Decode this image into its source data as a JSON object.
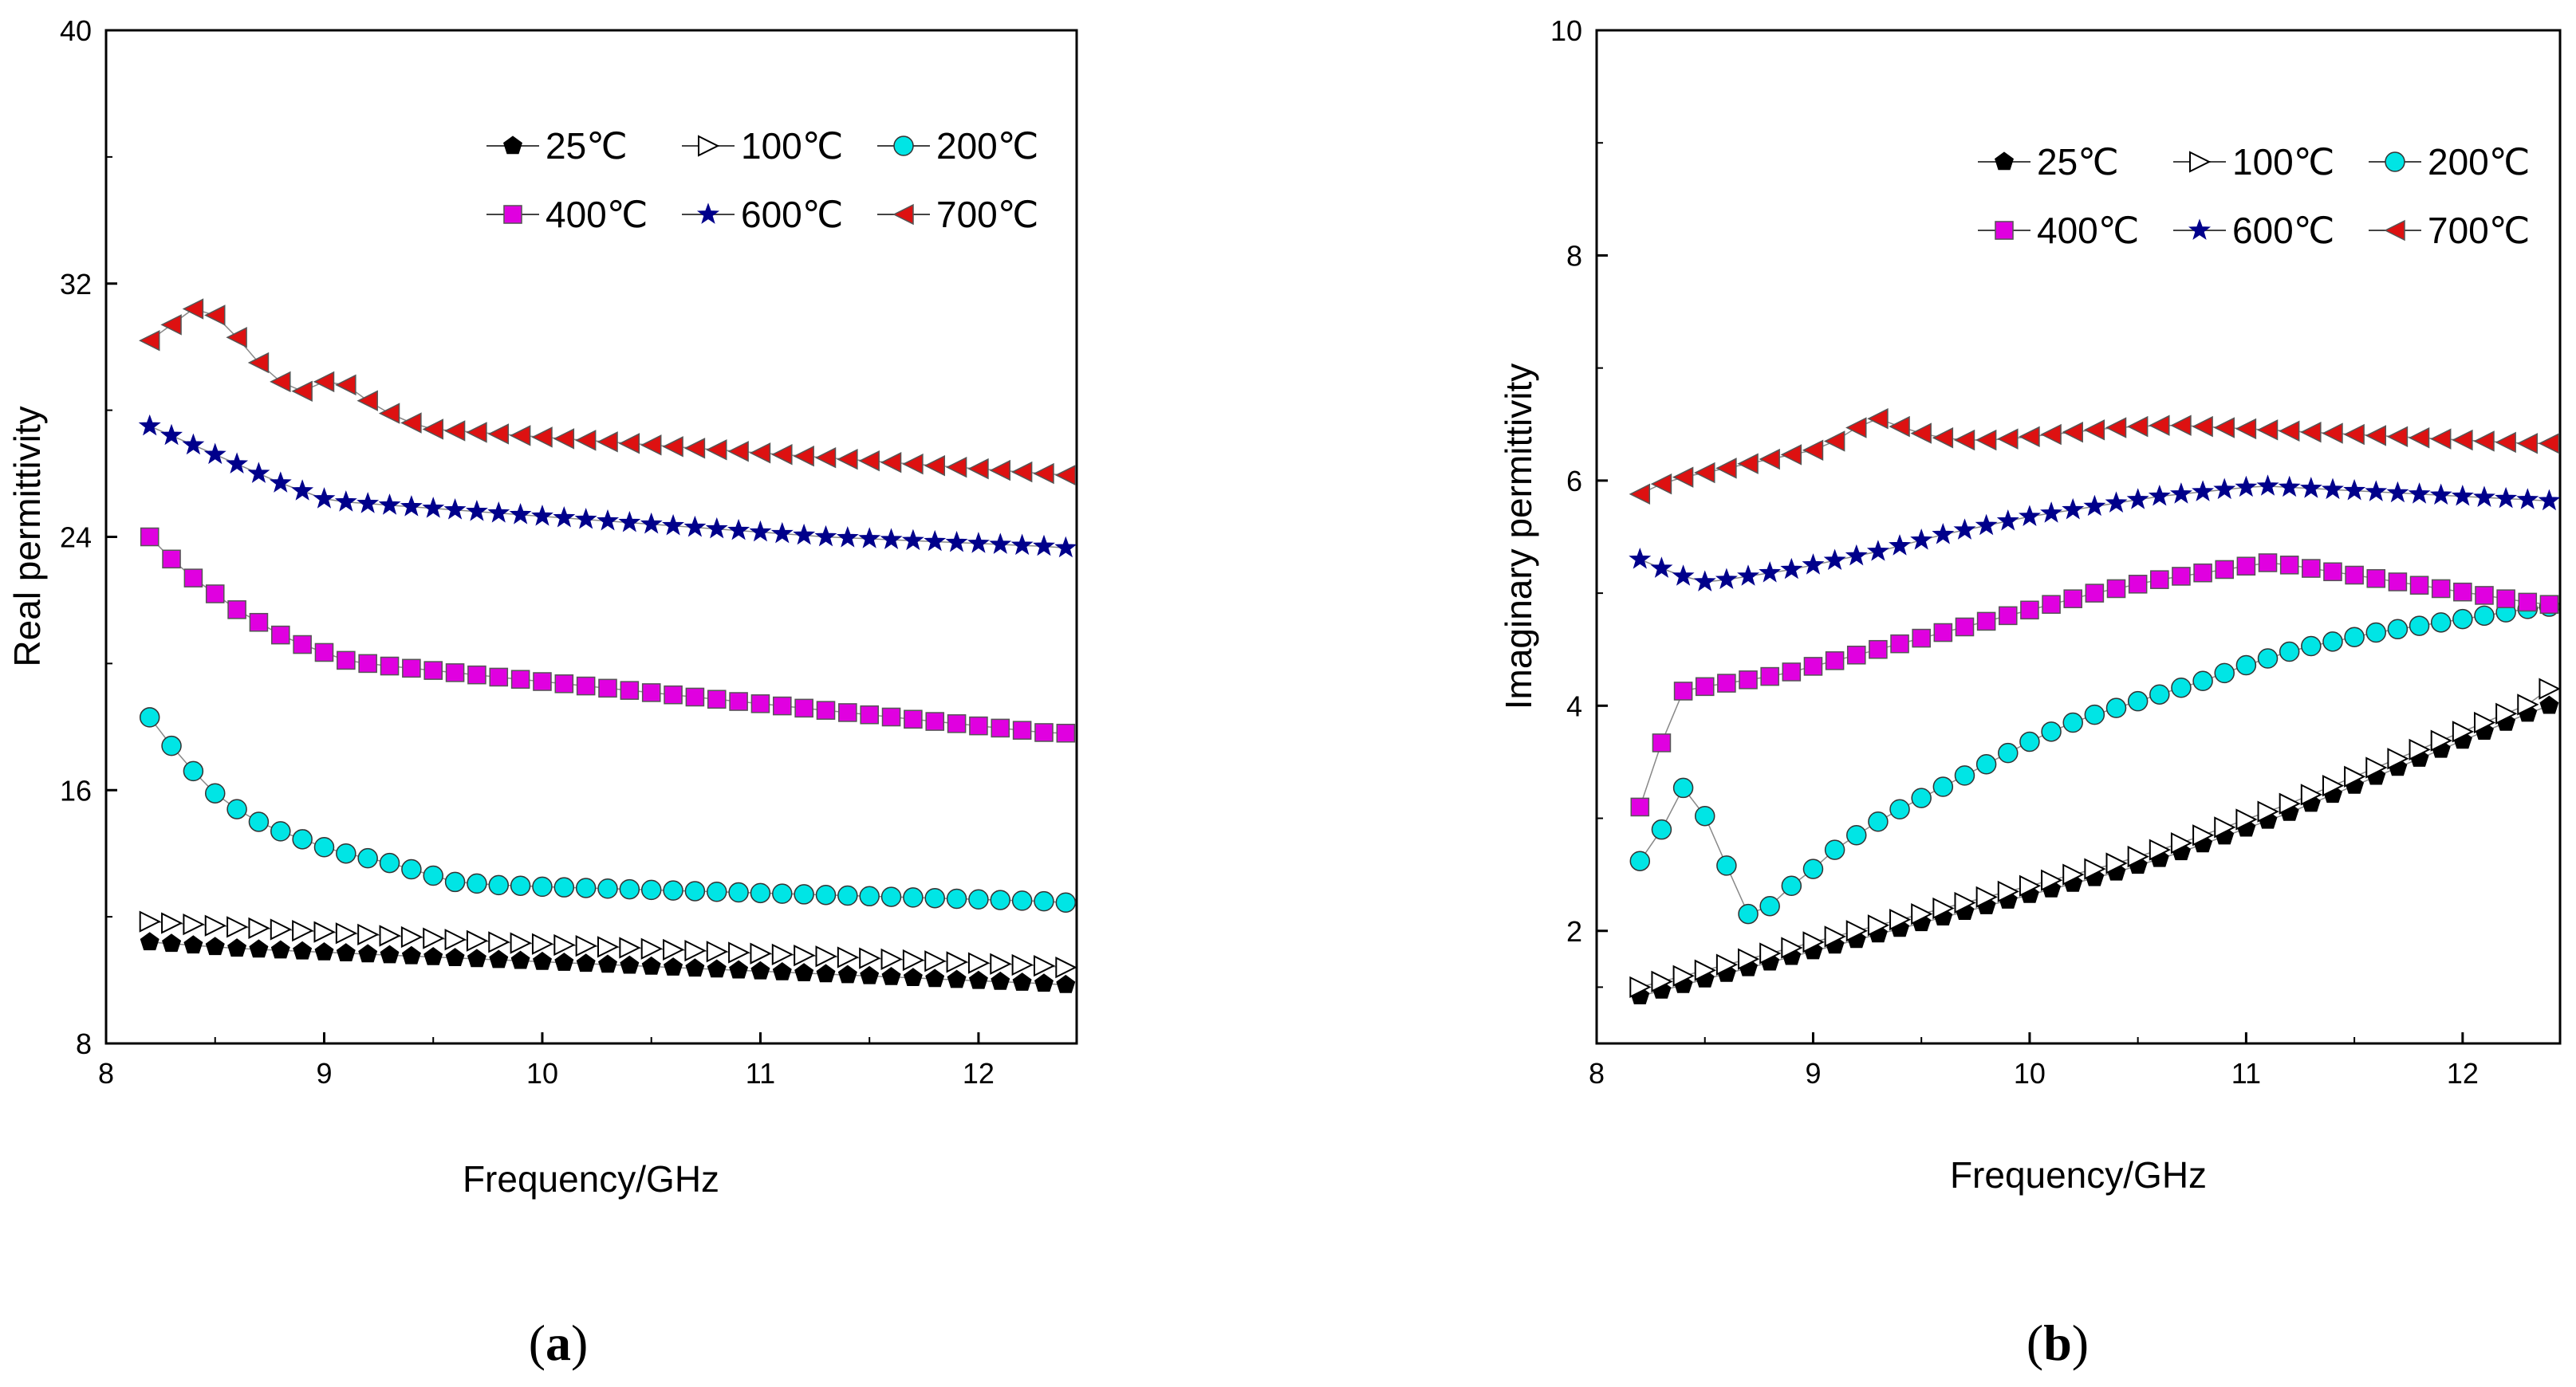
{
  "chart_data": [
    {
      "type": "scatter",
      "panel": "a",
      "caption": "(a)",
      "caption_open": "(",
      "caption_letter": "a",
      "caption_close": ")",
      "xlabel": "Frequency/GHz",
      "ylabel": "Real permittivity",
      "xlim": [
        8,
        12.45
      ],
      "ylim": [
        8,
        40
      ],
      "xticks": [
        8,
        9,
        10,
        11,
        12
      ],
      "yticks": [
        8,
        16,
        24,
        32,
        40
      ],
      "x": [
        8.2,
        8.3,
        8.4,
        8.5,
        8.6,
        8.7,
        8.8,
        8.9,
        9.0,
        9.1,
        9.2,
        9.3,
        9.4,
        9.5,
        9.6,
        9.7,
        9.8,
        9.9,
        10.0,
        10.1,
        10.2,
        10.3,
        10.4,
        10.5,
        10.6,
        10.7,
        10.8,
        10.9,
        11.0,
        11.1,
        11.2,
        11.3,
        11.4,
        11.5,
        11.6,
        11.7,
        11.8,
        11.9,
        12.0,
        12.1,
        12.2,
        12.3,
        12.4
      ],
      "legend": {
        "placement": "top-right",
        "columns": 3
      },
      "series": [
        {
          "name": "25℃",
          "marker": "pentagon",
          "color": "#000000",
          "values": [
            11.2,
            11.15,
            11.1,
            11.05,
            11.0,
            10.97,
            10.94,
            10.91,
            10.88,
            10.85,
            10.82,
            10.79,
            10.76,
            10.73,
            10.7,
            10.67,
            10.64,
            10.61,
            10.58,
            10.55,
            10.52,
            10.49,
            10.46,
            10.43,
            10.4,
            10.37,
            10.34,
            10.31,
            10.28,
            10.25,
            10.22,
            10.19,
            10.16,
            10.13,
            10.1,
            10.07,
            10.04,
            10.01,
            9.98,
            9.95,
            9.92,
            9.89,
            9.85
          ]
        },
        {
          "name": "100℃",
          "marker": "triangle-right-open",
          "color": "#000000",
          "values": [
            11.85,
            11.8,
            11.76,
            11.72,
            11.68,
            11.64,
            11.6,
            11.56,
            11.52,
            11.48,
            11.44,
            11.4,
            11.36,
            11.32,
            11.28,
            11.24,
            11.2,
            11.17,
            11.14,
            11.11,
            11.08,
            11.05,
            11.02,
            10.99,
            10.96,
            10.93,
            10.9,
            10.87,
            10.84,
            10.81,
            10.78,
            10.75,
            10.72,
            10.69,
            10.66,
            10.63,
            10.6,
            10.57,
            10.54,
            10.51,
            10.48,
            10.45,
            10.4
          ]
        },
        {
          "name": "200℃",
          "marker": "circle",
          "color": "#00e5e5",
          "values": [
            18.3,
            17.4,
            16.6,
            15.9,
            15.4,
            15.0,
            14.7,
            14.45,
            14.2,
            14.0,
            13.85,
            13.7,
            13.5,
            13.3,
            13.1,
            13.05,
            13.0,
            12.98,
            12.95,
            12.93,
            12.91,
            12.89,
            12.87,
            12.85,
            12.83,
            12.81,
            12.79,
            12.77,
            12.75,
            12.73,
            12.71,
            12.69,
            12.67,
            12.65,
            12.63,
            12.61,
            12.59,
            12.57,
            12.55,
            12.53,
            12.51,
            12.49,
            12.45
          ]
        },
        {
          "name": "400℃",
          "marker": "square",
          "color": "#e000e0",
          "values": [
            24.0,
            23.3,
            22.7,
            22.2,
            21.7,
            21.3,
            20.9,
            20.6,
            20.35,
            20.1,
            20.0,
            19.92,
            19.85,
            19.78,
            19.71,
            19.64,
            19.57,
            19.5,
            19.43,
            19.36,
            19.29,
            19.22,
            19.15,
            19.08,
            19.01,
            18.94,
            18.87,
            18.8,
            18.73,
            18.66,
            18.59,
            18.52,
            18.45,
            18.38,
            18.31,
            18.24,
            18.17,
            18.1,
            18.03,
            17.96,
            17.89,
            17.82,
            17.8
          ]
        },
        {
          "name": "600℃",
          "marker": "star",
          "color": "#00008b",
          "values": [
            27.5,
            27.2,
            26.9,
            26.6,
            26.3,
            26.0,
            25.7,
            25.45,
            25.2,
            25.1,
            25.05,
            25.0,
            24.95,
            24.9,
            24.85,
            24.8,
            24.75,
            24.7,
            24.65,
            24.6,
            24.55,
            24.5,
            24.45,
            24.4,
            24.35,
            24.3,
            24.25,
            24.2,
            24.15,
            24.1,
            24.05,
            24.0,
            23.97,
            23.94,
            23.91,
            23.88,
            23.85,
            23.82,
            23.79,
            23.76,
            23.73,
            23.7,
            23.65
          ]
        },
        {
          "name": "700℃",
          "marker": "triangle-left",
          "color": "#dd1111",
          "values": [
            30.2,
            30.7,
            31.2,
            31.0,
            30.3,
            29.5,
            28.9,
            28.6,
            28.9,
            28.8,
            28.3,
            27.9,
            27.6,
            27.4,
            27.35,
            27.3,
            27.25,
            27.2,
            27.15,
            27.1,
            27.05,
            27.0,
            26.95,
            26.9,
            26.85,
            26.8,
            26.75,
            26.7,
            26.65,
            26.6,
            26.55,
            26.5,
            26.45,
            26.4,
            26.35,
            26.3,
            26.25,
            26.2,
            26.15,
            26.1,
            26.05,
            26.0,
            25.95
          ]
        }
      ]
    },
    {
      "type": "scatter",
      "panel": "b",
      "caption": "(b)",
      "caption_open": "(",
      "caption_letter": "b",
      "caption_close": ")",
      "xlabel": "Frequency/GHz",
      "ylabel": "Imaginary permittivity",
      "xlim": [
        8,
        12.45
      ],
      "ylim": [
        1,
        10
      ],
      "xticks": [
        8,
        9,
        10,
        11,
        12
      ],
      "yticks": [
        2,
        4,
        6,
        8,
        10
      ],
      "x": [
        8.2,
        8.3,
        8.4,
        8.5,
        8.6,
        8.7,
        8.8,
        8.9,
        9.0,
        9.1,
        9.2,
        9.3,
        9.4,
        9.5,
        9.6,
        9.7,
        9.8,
        9.9,
        10.0,
        10.1,
        10.2,
        10.3,
        10.4,
        10.5,
        10.6,
        10.7,
        10.8,
        10.9,
        11.0,
        11.1,
        11.2,
        11.3,
        11.4,
        11.5,
        11.6,
        11.7,
        11.8,
        11.9,
        12.0,
        12.1,
        12.2,
        12.3,
        12.4
      ],
      "legend": {
        "placement": "top-right",
        "columns": 3
      },
      "series": [
        {
          "name": "25℃",
          "marker": "pentagon",
          "color": "#000000",
          "values": [
            1.42,
            1.47,
            1.52,
            1.57,
            1.62,
            1.67,
            1.72,
            1.77,
            1.82,
            1.87,
            1.92,
            1.97,
            2.02,
            2.07,
            2.12,
            2.17,
            2.22,
            2.27,
            2.32,
            2.37,
            2.42,
            2.47,
            2.52,
            2.58,
            2.64,
            2.7,
            2.77,
            2.84,
            2.91,
            2.98,
            3.05,
            3.13,
            3.21,
            3.29,
            3.37,
            3.45,
            3.53,
            3.61,
            3.69,
            3.77,
            3.85,
            3.93,
            4.0
          ]
        },
        {
          "name": "100℃",
          "marker": "triangle-right-open",
          "color": "#000000",
          "values": [
            1.5,
            1.55,
            1.6,
            1.65,
            1.7,
            1.75,
            1.8,
            1.85,
            1.9,
            1.95,
            2.0,
            2.05,
            2.1,
            2.15,
            2.2,
            2.25,
            2.3,
            2.35,
            2.4,
            2.45,
            2.5,
            2.55,
            2.6,
            2.66,
            2.72,
            2.78,
            2.85,
            2.92,
            2.99,
            3.06,
            3.13,
            3.21,
            3.29,
            3.37,
            3.45,
            3.53,
            3.61,
            3.69,
            3.77,
            3.85,
            3.93,
            4.01,
            4.15
          ]
        },
        {
          "name": "200℃",
          "marker": "circle",
          "color": "#00e5e5",
          "values": [
            2.62,
            2.9,
            3.27,
            3.02,
            2.58,
            2.15,
            2.22,
            2.4,
            2.55,
            2.72,
            2.85,
            2.97,
            3.08,
            3.18,
            3.28,
            3.38,
            3.48,
            3.58,
            3.68,
            3.77,
            3.85,
            3.92,
            3.98,
            4.04,
            4.1,
            4.16,
            4.22,
            4.29,
            4.36,
            4.42,
            4.48,
            4.53,
            4.57,
            4.61,
            4.65,
            4.68,
            4.71,
            4.74,
            4.77,
            4.8,
            4.83,
            4.86,
            4.88
          ]
        },
        {
          "name": "400℃",
          "marker": "square",
          "color": "#e000e0",
          "values": [
            3.1,
            3.67,
            4.13,
            4.17,
            4.2,
            4.23,
            4.26,
            4.3,
            4.35,
            4.4,
            4.45,
            4.5,
            4.55,
            4.6,
            4.65,
            4.7,
            4.75,
            4.8,
            4.85,
            4.9,
            4.95,
            5.0,
            5.04,
            5.08,
            5.12,
            5.15,
            5.18,
            5.21,
            5.24,
            5.27,
            5.25,
            5.22,
            5.19,
            5.16,
            5.13,
            5.1,
            5.07,
            5.04,
            5.01,
            4.98,
            4.95,
            4.92,
            4.9
          ]
        },
        {
          "name": "600℃",
          "marker": "star",
          "color": "#00008b",
          "values": [
            5.3,
            5.22,
            5.15,
            5.1,
            5.12,
            5.15,
            5.18,
            5.21,
            5.25,
            5.29,
            5.33,
            5.37,
            5.42,
            5.47,
            5.52,
            5.56,
            5.6,
            5.64,
            5.68,
            5.71,
            5.74,
            5.77,
            5.8,
            5.83,
            5.86,
            5.88,
            5.9,
            5.92,
            5.94,
            5.95,
            5.94,
            5.93,
            5.92,
            5.91,
            5.9,
            5.89,
            5.88,
            5.87,
            5.86,
            5.85,
            5.84,
            5.83,
            5.82
          ]
        },
        {
          "name": "700℃",
          "marker": "triangle-left",
          "color": "#dd1111",
          "values": [
            5.88,
            5.97,
            6.03,
            6.07,
            6.11,
            6.15,
            6.19,
            6.23,
            6.27,
            6.35,
            6.47,
            6.55,
            6.48,
            6.42,
            6.38,
            6.36,
            6.36,
            6.37,
            6.39,
            6.41,
            6.43,
            6.45,
            6.47,
            6.48,
            6.49,
            6.49,
            6.48,
            6.47,
            6.46,
            6.45,
            6.44,
            6.43,
            6.42,
            6.41,
            6.4,
            6.39,
            6.38,
            6.37,
            6.36,
            6.35,
            6.34,
            6.33,
            6.33
          ]
        }
      ]
    }
  ]
}
